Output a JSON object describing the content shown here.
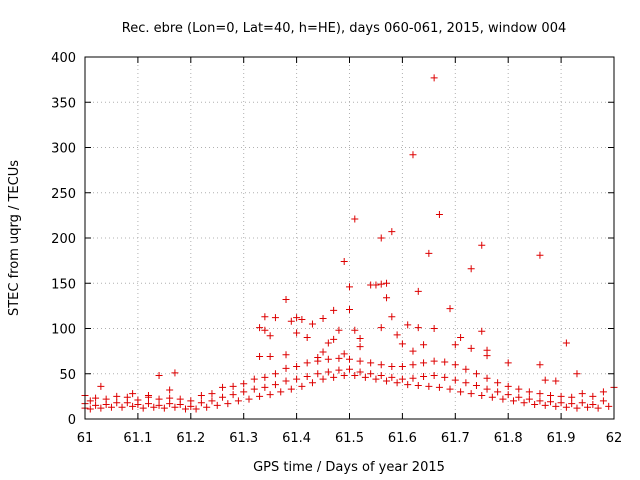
{
  "chart_data": {
    "type": "scatter",
    "title": "Rec. ebre (Lon=0, Lat=40, h=HE), days 060-061, 2015, window 004",
    "xlabel": "GPS time / Days of year 2015",
    "ylabel": "STEC from uqrg / TECUs",
    "xlim": [
      61,
      62
    ],
    "ylim": [
      0,
      400
    ],
    "x_ticks": [
      "61",
      "61.1",
      "61.2",
      "61.3",
      "61.4",
      "61.5",
      "61.6",
      "61.7",
      "61.8",
      "61.9",
      "62"
    ],
    "y_ticks": [
      "0",
      "50",
      "100",
      "150",
      "200",
      "250",
      "300",
      "350",
      "400"
    ],
    "marker": "+",
    "grid": true,
    "series": [
      {
        "name": "",
        "color": "#dd0000",
        "points": [
          [
            61.03,
            36
          ],
          [
            61.14,
            48
          ],
          [
            61.17,
            51
          ],
          [
            61.16,
            32
          ],
          [
            61.09,
            28
          ],
          [
            61.12,
            26
          ],
          [
            61.33,
            69
          ],
          [
            61.35,
            69
          ],
          [
            61.33,
            101
          ],
          [
            61.34,
            98
          ],
          [
            61.34,
            113
          ],
          [
            61.36,
            112
          ],
          [
            61.35,
            92
          ],
          [
            61.38,
            132
          ],
          [
            61.39,
            108
          ],
          [
            61.4,
            112
          ],
          [
            61.41,
            110
          ],
          [
            61.4,
            95
          ],
          [
            61.42,
            90
          ],
          [
            61.38,
            71
          ],
          [
            61.43,
            105
          ],
          [
            61.44,
            68
          ],
          [
            61.45,
            74
          ],
          [
            61.45,
            111
          ],
          [
            61.47,
            120
          ],
          [
            61.48,
            98
          ],
          [
            61.47,
            88
          ],
          [
            61.46,
            84
          ],
          [
            61.49,
            72
          ],
          [
            61.49,
            174
          ],
          [
            61.5,
            146
          ],
          [
            61.5,
            121
          ],
          [
            61.51,
            98
          ],
          [
            61.52,
            89
          ],
          [
            61.52,
            80
          ],
          [
            61.51,
            221
          ],
          [
            61.54,
            148
          ],
          [
            61.55,
            148
          ],
          [
            61.56,
            200
          ],
          [
            61.56,
            149
          ],
          [
            61.57,
            150
          ],
          [
            61.57,
            134
          ],
          [
            61.58,
            207
          ],
          [
            61.58,
            113
          ],
          [
            61.56,
            101
          ],
          [
            61.59,
            93
          ],
          [
            61.6,
            83
          ],
          [
            61.61,
            104
          ],
          [
            61.62,
            292
          ],
          [
            61.62,
            75
          ],
          [
            61.63,
            141
          ],
          [
            61.63,
            101
          ],
          [
            61.64,
            82
          ],
          [
            61.65,
            183
          ],
          [
            61.66,
            377
          ],
          [
            61.67,
            226
          ],
          [
            61.66,
            100
          ],
          [
            61.69,
            122
          ],
          [
            61.7,
            82
          ],
          [
            61.71,
            90
          ],
          [
            61.73,
            78
          ],
          [
            61.73,
            166
          ],
          [
            61.75,
            192
          ],
          [
            61.75,
            97
          ],
          [
            61.76,
            70
          ],
          [
            61.76,
            76
          ],
          [
            61.8,
            62
          ],
          [
            61.86,
            181
          ],
          [
            61.86,
            60
          ],
          [
            61.91,
            84
          ],
          [
            61.93,
            50
          ],
          [
            61.87,
            43
          ],
          [
            61.89,
            42
          ],
          [
            61.0,
            26
          ],
          [
            61.0,
            17
          ],
          [
            61.0,
            12
          ],
          [
            61.01,
            20
          ],
          [
            61.01,
            11
          ],
          [
            61.02,
            23
          ],
          [
            61.02,
            15
          ],
          [
            61.03,
            12
          ],
          [
            61.04,
            22
          ],
          [
            61.04,
            16
          ],
          [
            61.05,
            13
          ],
          [
            61.06,
            25
          ],
          [
            61.06,
            18
          ],
          [
            61.07,
            13
          ],
          [
            61.08,
            24
          ],
          [
            61.08,
            18
          ],
          [
            61.09,
            14
          ],
          [
            61.1,
            21
          ],
          [
            61.1,
            16
          ],
          [
            61.11,
            12
          ],
          [
            61.12,
            24
          ],
          [
            61.12,
            17
          ],
          [
            61.13,
            13
          ],
          [
            61.14,
            22
          ],
          [
            61.14,
            15
          ],
          [
            61.15,
            12
          ],
          [
            61.16,
            23
          ],
          [
            61.16,
            17
          ],
          [
            61.17,
            13
          ],
          [
            61.18,
            22
          ],
          [
            61.18,
            16
          ],
          [
            61.19,
            11
          ],
          [
            61.2,
            20
          ],
          [
            61.2,
            14
          ],
          [
            61.21,
            11
          ],
          [
            61.22,
            26
          ],
          [
            61.22,
            18
          ],
          [
            61.23,
            13
          ],
          [
            61.24,
            28
          ],
          [
            61.24,
            20
          ],
          [
            61.25,
            15
          ],
          [
            61.26,
            35
          ],
          [
            61.26,
            24
          ],
          [
            61.27,
            17
          ],
          [
            61.28,
            36
          ],
          [
            61.28,
            27
          ],
          [
            61.29,
            20
          ],
          [
            61.3,
            39
          ],
          [
            61.3,
            30
          ],
          [
            61.31,
            22
          ],
          [
            61.32,
            44
          ],
          [
            61.32,
            33
          ],
          [
            61.33,
            25
          ],
          [
            61.34,
            46
          ],
          [
            61.34,
            35
          ],
          [
            61.35,
            27
          ],
          [
            61.36,
            50
          ],
          [
            61.36,
            38
          ],
          [
            61.37,
            30
          ],
          [
            61.38,
            56
          ],
          [
            61.38,
            42
          ],
          [
            61.39,
            33
          ],
          [
            61.4,
            58
          ],
          [
            61.4,
            44
          ],
          [
            61.41,
            36
          ],
          [
            61.42,
            62
          ],
          [
            61.42,
            47
          ],
          [
            61.43,
            40
          ],
          [
            61.44,
            64
          ],
          [
            61.44,
            50
          ],
          [
            61.45,
            44
          ],
          [
            61.46,
            66
          ],
          [
            61.46,
            52
          ],
          [
            61.47,
            46
          ],
          [
            61.48,
            67
          ],
          [
            61.48,
            54
          ],
          [
            61.49,
            48
          ],
          [
            61.5,
            66
          ],
          [
            61.5,
            55
          ],
          [
            61.51,
            48
          ],
          [
            61.52,
            64
          ],
          [
            61.52,
            52
          ],
          [
            61.53,
            46
          ],
          [
            61.54,
            62
          ],
          [
            61.54,
            50
          ],
          [
            61.55,
            44
          ],
          [
            61.56,
            60
          ],
          [
            61.56,
            48
          ],
          [
            61.57,
            42
          ],
          [
            61.58,
            58
          ],
          [
            61.58,
            46
          ],
          [
            61.59,
            40
          ],
          [
            61.6,
            58
          ],
          [
            61.6,
            44
          ],
          [
            61.61,
            38
          ],
          [
            61.62,
            60
          ],
          [
            61.62,
            45
          ],
          [
            61.63,
            37
          ],
          [
            61.64,
            62
          ],
          [
            61.64,
            47
          ],
          [
            61.65,
            36
          ],
          [
            61.66,
            64
          ],
          [
            61.66,
            48
          ],
          [
            61.67,
            35
          ],
          [
            61.68,
            63
          ],
          [
            61.68,
            46
          ],
          [
            61.69,
            33
          ],
          [
            61.7,
            60
          ],
          [
            61.7,
            43
          ],
          [
            61.71,
            30
          ],
          [
            61.72,
            55
          ],
          [
            61.72,
            40
          ],
          [
            61.73,
            28
          ],
          [
            61.74,
            50
          ],
          [
            61.74,
            37
          ],
          [
            61.75,
            26
          ],
          [
            61.76,
            45
          ],
          [
            61.76,
            33
          ],
          [
            61.77,
            24
          ],
          [
            61.78,
            40
          ],
          [
            61.78,
            30
          ],
          [
            61.79,
            22
          ],
          [
            61.8,
            36
          ],
          [
            61.8,
            27
          ],
          [
            61.81,
            20
          ],
          [
            61.82,
            33
          ],
          [
            61.82,
            24
          ],
          [
            61.83,
            18
          ],
          [
            61.84,
            30
          ],
          [
            61.84,
            22
          ],
          [
            61.85,
            16
          ],
          [
            61.86,
            28
          ],
          [
            61.86,
            20
          ],
          [
            61.87,
            15
          ],
          [
            61.88,
            26
          ],
          [
            61.88,
            19
          ],
          [
            61.89,
            14
          ],
          [
            61.9,
            25
          ],
          [
            61.9,
            18
          ],
          [
            61.91,
            13
          ],
          [
            61.92,
            24
          ],
          [
            61.92,
            17
          ],
          [
            61.93,
            12
          ],
          [
            61.94,
            28
          ],
          [
            61.94,
            18
          ],
          [
            61.95,
            13
          ],
          [
            61.96,
            25
          ],
          [
            61.96,
            16
          ],
          [
            61.97,
            12
          ],
          [
            61.98,
            30
          ],
          [
            61.98,
            20
          ],
          [
            61.99,
            14
          ],
          [
            62.0,
            35
          ]
        ]
      }
    ]
  }
}
